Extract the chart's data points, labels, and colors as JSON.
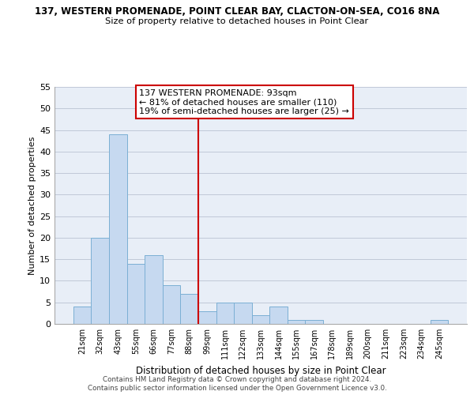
{
  "title_line1": "137, WESTERN PROMENADE, POINT CLEAR BAY, CLACTON-ON-SEA, CO16 8NA",
  "title_line2": "Size of property relative to detached houses in Point Clear",
  "xlabel": "Distribution of detached houses by size in Point Clear",
  "ylabel": "Number of detached properties",
  "bar_labels": [
    "21sqm",
    "32sqm",
    "43sqm",
    "55sqm",
    "66sqm",
    "77sqm",
    "88sqm",
    "99sqm",
    "111sqm",
    "122sqm",
    "133sqm",
    "144sqm",
    "155sqm",
    "167sqm",
    "178sqm",
    "189sqm",
    "200sqm",
    "211sqm",
    "223sqm",
    "234sqm",
    "245sqm"
  ],
  "bar_values": [
    4,
    20,
    44,
    14,
    16,
    9,
    7,
    3,
    5,
    5,
    2,
    4,
    1,
    1,
    0,
    0,
    0,
    0,
    0,
    0,
    1
  ],
  "bar_color": "#c6d9f0",
  "bar_edge_color": "#7bafd4",
  "vline_color": "#cc0000",
  "ylim": [
    0,
    55
  ],
  "yticks": [
    0,
    5,
    10,
    15,
    20,
    25,
    30,
    35,
    40,
    45,
    50,
    55
  ],
  "annotation_title": "137 WESTERN PROMENADE: 93sqm",
  "annotation_line1": "← 81% of detached houses are smaller (110)",
  "annotation_line2": "19% of semi-detached houses are larger (25) →",
  "annotation_box_color": "#ffffff",
  "annotation_box_edge": "#cc0000",
  "footer_line1": "Contains HM Land Registry data © Crown copyright and database right 2024.",
  "footer_line2": "Contains public sector information licensed under the Open Government Licence v3.0.",
  "bg_color": "#e8eef7"
}
